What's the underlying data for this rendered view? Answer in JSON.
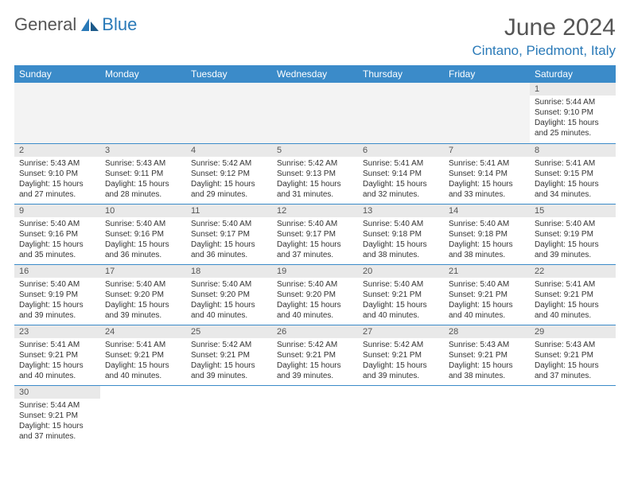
{
  "brand": {
    "part1": "General",
    "part2": "Blue"
  },
  "title": {
    "month": "June 2024",
    "location": "Cintano, Piedmont, Italy"
  },
  "colors": {
    "header_bg": "#3b8bc9",
    "header_text": "#ffffff",
    "daynum_bg": "#e9e9e9",
    "border": "#3b8bc9",
    "accent": "#2a7ab8"
  },
  "weekdays": [
    "Sunday",
    "Monday",
    "Tuesday",
    "Wednesday",
    "Thursday",
    "Friday",
    "Saturday"
  ],
  "weeks": [
    [
      null,
      null,
      null,
      null,
      null,
      null,
      {
        "n": "1",
        "sr": "Sunrise: 5:44 AM",
        "ss": "Sunset: 9:10 PM",
        "dl": "Daylight: 15 hours and 25 minutes."
      }
    ],
    [
      {
        "n": "2",
        "sr": "Sunrise: 5:43 AM",
        "ss": "Sunset: 9:10 PM",
        "dl": "Daylight: 15 hours and 27 minutes."
      },
      {
        "n": "3",
        "sr": "Sunrise: 5:43 AM",
        "ss": "Sunset: 9:11 PM",
        "dl": "Daylight: 15 hours and 28 minutes."
      },
      {
        "n": "4",
        "sr": "Sunrise: 5:42 AM",
        "ss": "Sunset: 9:12 PM",
        "dl": "Daylight: 15 hours and 29 minutes."
      },
      {
        "n": "5",
        "sr": "Sunrise: 5:42 AM",
        "ss": "Sunset: 9:13 PM",
        "dl": "Daylight: 15 hours and 31 minutes."
      },
      {
        "n": "6",
        "sr": "Sunrise: 5:41 AM",
        "ss": "Sunset: 9:14 PM",
        "dl": "Daylight: 15 hours and 32 minutes."
      },
      {
        "n": "7",
        "sr": "Sunrise: 5:41 AM",
        "ss": "Sunset: 9:14 PM",
        "dl": "Daylight: 15 hours and 33 minutes."
      },
      {
        "n": "8",
        "sr": "Sunrise: 5:41 AM",
        "ss": "Sunset: 9:15 PM",
        "dl": "Daylight: 15 hours and 34 minutes."
      }
    ],
    [
      {
        "n": "9",
        "sr": "Sunrise: 5:40 AM",
        "ss": "Sunset: 9:16 PM",
        "dl": "Daylight: 15 hours and 35 minutes."
      },
      {
        "n": "10",
        "sr": "Sunrise: 5:40 AM",
        "ss": "Sunset: 9:16 PM",
        "dl": "Daylight: 15 hours and 36 minutes."
      },
      {
        "n": "11",
        "sr": "Sunrise: 5:40 AM",
        "ss": "Sunset: 9:17 PM",
        "dl": "Daylight: 15 hours and 36 minutes."
      },
      {
        "n": "12",
        "sr": "Sunrise: 5:40 AM",
        "ss": "Sunset: 9:17 PM",
        "dl": "Daylight: 15 hours and 37 minutes."
      },
      {
        "n": "13",
        "sr": "Sunrise: 5:40 AM",
        "ss": "Sunset: 9:18 PM",
        "dl": "Daylight: 15 hours and 38 minutes."
      },
      {
        "n": "14",
        "sr": "Sunrise: 5:40 AM",
        "ss": "Sunset: 9:18 PM",
        "dl": "Daylight: 15 hours and 38 minutes."
      },
      {
        "n": "15",
        "sr": "Sunrise: 5:40 AM",
        "ss": "Sunset: 9:19 PM",
        "dl": "Daylight: 15 hours and 39 minutes."
      }
    ],
    [
      {
        "n": "16",
        "sr": "Sunrise: 5:40 AM",
        "ss": "Sunset: 9:19 PM",
        "dl": "Daylight: 15 hours and 39 minutes."
      },
      {
        "n": "17",
        "sr": "Sunrise: 5:40 AM",
        "ss": "Sunset: 9:20 PM",
        "dl": "Daylight: 15 hours and 39 minutes."
      },
      {
        "n": "18",
        "sr": "Sunrise: 5:40 AM",
        "ss": "Sunset: 9:20 PM",
        "dl": "Daylight: 15 hours and 40 minutes."
      },
      {
        "n": "19",
        "sr": "Sunrise: 5:40 AM",
        "ss": "Sunset: 9:20 PM",
        "dl": "Daylight: 15 hours and 40 minutes."
      },
      {
        "n": "20",
        "sr": "Sunrise: 5:40 AM",
        "ss": "Sunset: 9:21 PM",
        "dl": "Daylight: 15 hours and 40 minutes."
      },
      {
        "n": "21",
        "sr": "Sunrise: 5:40 AM",
        "ss": "Sunset: 9:21 PM",
        "dl": "Daylight: 15 hours and 40 minutes."
      },
      {
        "n": "22",
        "sr": "Sunrise: 5:41 AM",
        "ss": "Sunset: 9:21 PM",
        "dl": "Daylight: 15 hours and 40 minutes."
      }
    ],
    [
      {
        "n": "23",
        "sr": "Sunrise: 5:41 AM",
        "ss": "Sunset: 9:21 PM",
        "dl": "Daylight: 15 hours and 40 minutes."
      },
      {
        "n": "24",
        "sr": "Sunrise: 5:41 AM",
        "ss": "Sunset: 9:21 PM",
        "dl": "Daylight: 15 hours and 40 minutes."
      },
      {
        "n": "25",
        "sr": "Sunrise: 5:42 AM",
        "ss": "Sunset: 9:21 PM",
        "dl": "Daylight: 15 hours and 39 minutes."
      },
      {
        "n": "26",
        "sr": "Sunrise: 5:42 AM",
        "ss": "Sunset: 9:21 PM",
        "dl": "Daylight: 15 hours and 39 minutes."
      },
      {
        "n": "27",
        "sr": "Sunrise: 5:42 AM",
        "ss": "Sunset: 9:21 PM",
        "dl": "Daylight: 15 hours and 39 minutes."
      },
      {
        "n": "28",
        "sr": "Sunrise: 5:43 AM",
        "ss": "Sunset: 9:21 PM",
        "dl": "Daylight: 15 hours and 38 minutes."
      },
      {
        "n": "29",
        "sr": "Sunrise: 5:43 AM",
        "ss": "Sunset: 9:21 PM",
        "dl": "Daylight: 15 hours and 37 minutes."
      }
    ],
    [
      {
        "n": "30",
        "sr": "Sunrise: 5:44 AM",
        "ss": "Sunset: 9:21 PM",
        "dl": "Daylight: 15 hours and 37 minutes."
      },
      null,
      null,
      null,
      null,
      null,
      null
    ]
  ]
}
